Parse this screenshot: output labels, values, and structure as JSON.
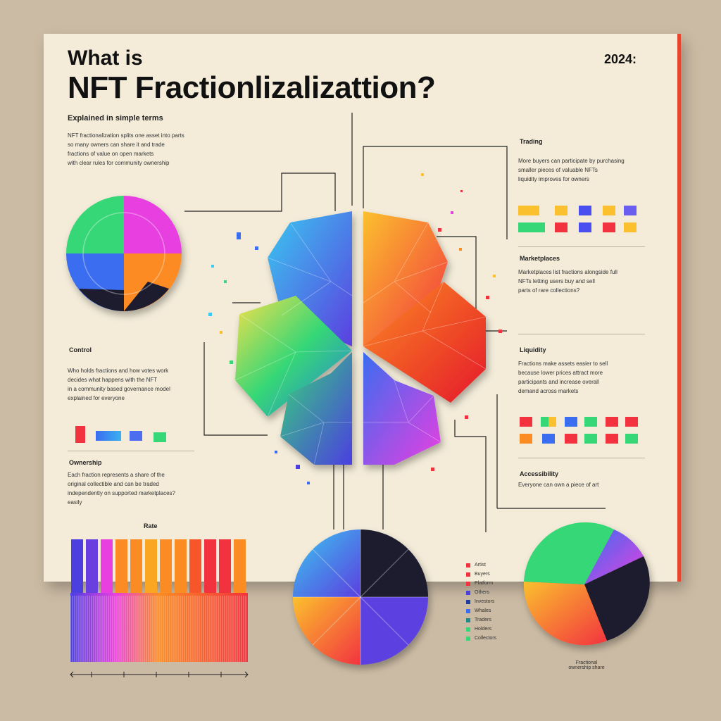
{
  "title": {
    "line1": "What is",
    "line2": "NFT Fractionlizalizattion?",
    "year": "2024:"
  },
  "subtitle": "Explained in simple terms",
  "sections": {
    "left_top_lines": [
      "NFT fractionalization splits one asset into parts",
      "so many owners can share it and trade",
      "fractions of value on open markets",
      "with clear rules for community ownership"
    ],
    "left_mid_heading": "Control",
    "left_mid_lines": [
      "Who holds fractions and how votes work",
      "decides what happens with the NFT",
      "in a community based governance model",
      "explained for everyone"
    ],
    "left_low_heading": "Ownership",
    "left_low_lines": [
      "Each fraction represents a share of the",
      "original collectible and can be traded",
      "independently on supported marketplaces?",
      "easily"
    ],
    "right_top_heading": "Trading",
    "right_top_lines": [
      "More buyers can participate by purchasing",
      "smaller pieces of valuable NFTs",
      "liquidity improves for owners"
    ],
    "right_mid_heading": "Marketplaces",
    "right_mid_lines": [
      "Marketplaces list fractions alongside full",
      "NFTs letting users buy and sell",
      "parts of rare collections?"
    ],
    "right_low_heading": "Liquidity",
    "right_low_lines": [
      "Fractions make assets easier to sell",
      "because lower prices attract more",
      "participants and increase overall",
      "demand across markets"
    ],
    "right_bottom_heading": "Accessibility",
    "right_bottom_lines": [
      "Everyone can own a piece of art"
    ],
    "bar_heading": "Rate",
    "pie_caption": [
      "Fractional",
      "ownership share"
    ]
  },
  "legend": [
    "Artist",
    "Buyers",
    "Platform",
    "Others",
    "Investors",
    "Whales",
    "Traders",
    "Holders",
    "Collectors"
  ],
  "colors": {
    "accent": "#e8452f",
    "red": "#f2333f",
    "orange": "#fb8b23",
    "yellow": "#fbc02d",
    "green": "#36d776",
    "blue": "#3a6df0",
    "indigo": "#4b3fe0",
    "magenta": "#e83fe0",
    "dark": "#1f1c2e"
  }
}
